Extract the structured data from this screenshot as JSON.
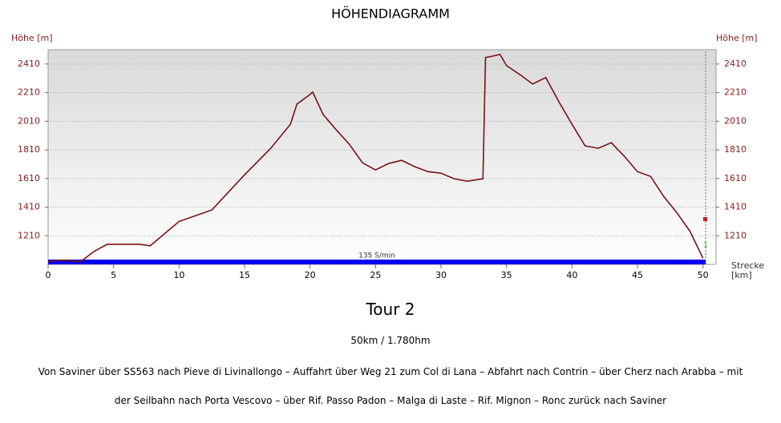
{
  "chart_data": {
    "type": "line",
    "title": "HÖHENDIAGRAMM",
    "y_label": "Höhe [m]",
    "y2_label": "Höhe [m]",
    "x_label": "Strecke [km]",
    "x": [
      0,
      1,
      2.5,
      3.5,
      4.5,
      7,
      7.8,
      10,
      12.5,
      15,
      17,
      18.5,
      19,
      20,
      20.2,
      21,
      22,
      23,
      24,
      25,
      26,
      27,
      28,
      29,
      30,
      31,
      32,
      33.2,
      33.4,
      34,
      34.5,
      35,
      36,
      37,
      38,
      39,
      40,
      41,
      42,
      43,
      44,
      45,
      46,
      47,
      48,
      49,
      50
    ],
    "values": [
      1030,
      1040,
      1030,
      1100,
      1150,
      1150,
      1140,
      1310,
      1390,
      1636,
      1821,
      1989,
      2130,
      2197,
      2214,
      2057,
      1950,
      1849,
      1720,
      1670,
      1715,
      1737,
      1692,
      1658,
      1647,
      1608,
      1591,
      1608,
      2455,
      2466,
      2477,
      2399,
      2337,
      2270,
      2315,
      2146,
      1989,
      1838,
      1821,
      1860,
      1765,
      1658,
      1625,
      1485,
      1372,
      1243,
      1053
    ],
    "color": "#7a1212",
    "xlim": [
      0,
      51
    ],
    "xticks": [
      0,
      5,
      10,
      15,
      20,
      25,
      30,
      35,
      40,
      45,
      50
    ],
    "ylim": [
      1010,
      2510
    ],
    "yticks": [
      1210,
      1410,
      1610,
      1810,
      2010,
      2210,
      2410
    ],
    "y2lim": [
      1010,
      2510
    ],
    "y2ticks": [
      1210,
      1410,
      1610,
      1810,
      2010,
      2210,
      2410
    ],
    "grid": true,
    "annotations": [
      "135 S/min",
      "1"
    ],
    "subtitle": "Tour 2",
    "info": "50km / 1.780hm",
    "description": "Von Saviner über SS563 nach Pieve di Livinallongo – Auffahrt über Weg 21 zum Col di Lana – Abfahrt nach Contrin – über Cherz nach Arabba – mit der Seilbahn nach Porta Vescovo – über Rif. Passo Padon – Malga di Laste – Rif. Mignon – Ronc zurück nach Saviner"
  }
}
